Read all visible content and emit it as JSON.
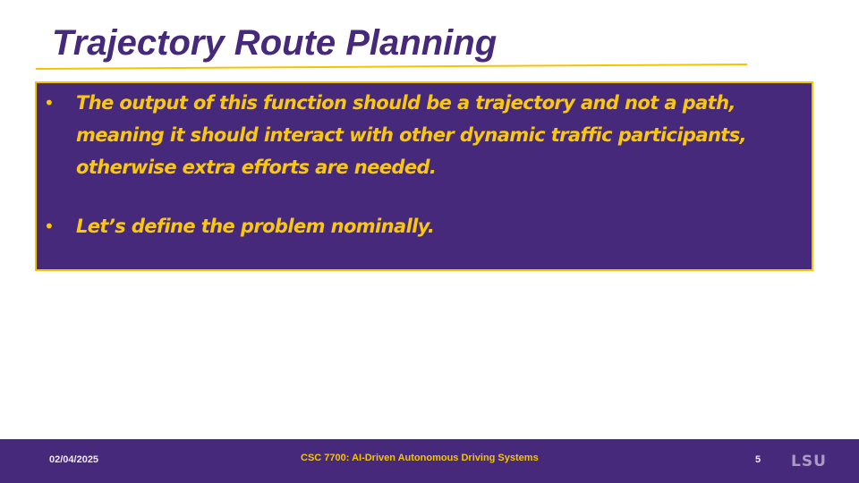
{
  "slide": {
    "title": "Trajectory Route Planning",
    "bullets": [
      "The output of this function should be a trajectory and not a path, meaning it should interact with other dynamic traffic participants, otherwise extra efforts are needed.",
      "Let’s define the problem nominally."
    ],
    "bullet_marker": "•"
  },
  "footer": {
    "date": "02/04/2025",
    "course": "CSC 7700: AI-Driven Autonomous Driving Systems",
    "page_number": "5",
    "logo_text": "LSU"
  },
  "colors": {
    "purple": "#46297a",
    "gold": "#f5c400",
    "background": "#ffffff"
  }
}
